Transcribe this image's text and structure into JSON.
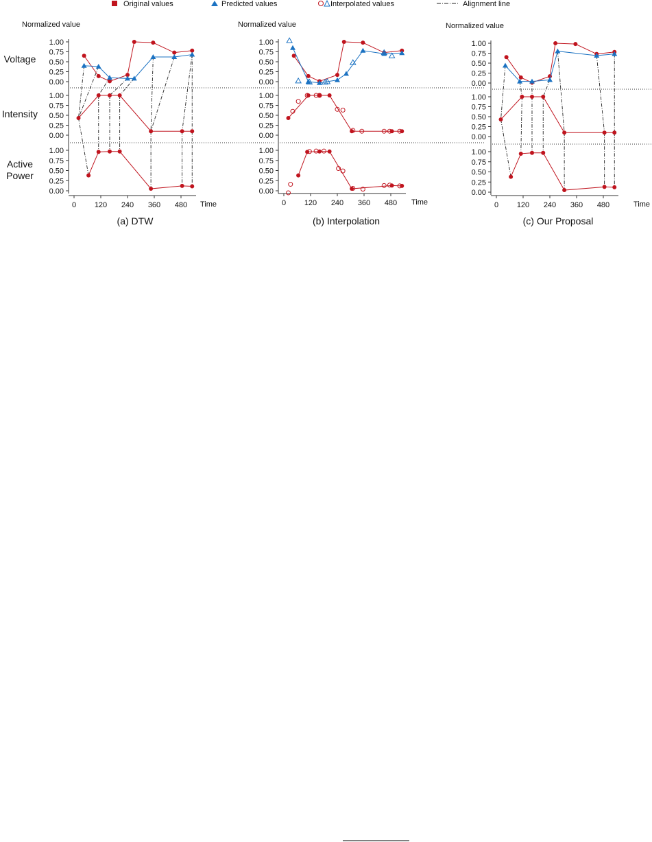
{
  "legend": {
    "original": "Original values",
    "predicted": "Predicted values",
    "interpolated": "Interpolated values",
    "alignment": "Alignment line"
  },
  "y_axis_title": "Normalized value",
  "x_axis_title": "Time",
  "row_labels": [
    "Voltage",
    "Intensity",
    "Active\nPower"
  ],
  "y_ticks": [
    "1.00",
    "0.75",
    "0.50",
    "0.25",
    "0.00"
  ],
  "x_ticks": [
    "0",
    "120",
    "240",
    "360",
    "480"
  ],
  "colors": {
    "original": "#c0141e",
    "predicted": "#1b72c2",
    "alignment": "#222222"
  },
  "chart_data": [
    {
      "type": "line",
      "caption": "(a) DTW",
      "xlim": [
        0,
        540
      ],
      "ylim": [
        0,
        1
      ],
      "series": [
        {
          "name": "Original values",
          "row": "Voltage",
          "x": [
            45,
            110,
            160,
            240,
            270,
            355,
            450,
            530
          ],
          "y": [
            0.65,
            0.14,
            0.01,
            0.17,
            1.0,
            0.98,
            0.73,
            0.78
          ]
        },
        {
          "name": "Predicted values",
          "row": "Voltage",
          "x": [
            45,
            110,
            160,
            240,
            270,
            355,
            450,
            530
          ],
          "y": [
            0.4,
            0.38,
            0.1,
            0.08,
            0.08,
            0.62,
            0.62,
            0.68
          ]
        },
        {
          "name": "Original values",
          "row": "Intensity",
          "x": [
            20,
            110,
            160,
            205,
            345,
            485,
            530
          ],
          "y": [
            0.43,
            1.0,
            1.0,
            1.0,
            0.1,
            0.1,
            0.1
          ]
        },
        {
          "name": "Original values",
          "row": "Active Power",
          "x": [
            65,
            110,
            160,
            205,
            345,
            485,
            530
          ],
          "y": [
            0.38,
            0.96,
            0.97,
            0.97,
            0.05,
            0.12,
            0.11
          ]
        }
      ],
      "alignments": [
        {
          "from": [
            "Voltage",
            45,
            0.4
          ],
          "to": [
            "Intensity",
            20,
            0.43
          ]
        },
        {
          "from": [
            "Voltage",
            110,
            0.38
          ],
          "to": [
            "Intensity",
            20,
            0.43
          ]
        },
        {
          "from": [
            "Voltage",
            160,
            0.1
          ],
          "to": [
            "Intensity",
            110,
            1.0
          ]
        },
        {
          "from": [
            "Voltage",
            240,
            0.08
          ],
          "to": [
            "Intensity",
            160,
            1.0
          ]
        },
        {
          "from": [
            "Voltage",
            270,
            0.08
          ],
          "to": [
            "Intensity",
            205,
            1.0
          ]
        },
        {
          "from": [
            "Voltage",
            355,
            0.62
          ],
          "to": [
            "Intensity",
            345,
            0.1
          ]
        },
        {
          "from": [
            "Voltage",
            450,
            0.62
          ],
          "to": [
            "Intensity",
            345,
            0.1
          ]
        },
        {
          "from": [
            "Voltage",
            530,
            0.68
          ],
          "to": [
            "Intensity",
            485,
            0.1
          ]
        },
        {
          "from": [
            "Voltage",
            530,
            0.68
          ],
          "to": [
            "Intensity",
            530,
            0.1
          ]
        },
        {
          "from": [
            "Intensity",
            20,
            0.43
          ],
          "to": [
            "Active Power",
            65,
            0.38
          ]
        },
        {
          "from": [
            "Intensity",
            110,
            1.0
          ],
          "to": [
            "Active Power",
            110,
            0.96
          ]
        },
        {
          "from": [
            "Intensity",
            160,
            1.0
          ],
          "to": [
            "Active Power",
            160,
            0.97
          ]
        },
        {
          "from": [
            "Intensity",
            205,
            1.0
          ],
          "to": [
            "Active Power",
            205,
            0.97
          ]
        },
        {
          "from": [
            "Intensity",
            345,
            0.1
          ],
          "to": [
            "Active Power",
            345,
            0.05
          ]
        },
        {
          "from": [
            "Intensity",
            485,
            0.1
          ],
          "to": [
            "Active Power",
            485,
            0.12
          ]
        },
        {
          "from": [
            "Intensity",
            530,
            0.1
          ],
          "to": [
            "Active Power",
            530,
            0.11
          ]
        }
      ]
    },
    {
      "type": "line",
      "caption": "(b) Interpolation",
      "xlim": [
        0,
        540
      ],
      "ylim": [
        0,
        1
      ],
      "series": [
        {
          "name": "Original values",
          "row": "Voltage",
          "x": [
            45,
            110,
            160,
            240,
            270,
            355,
            450,
            530
          ],
          "y": [
            0.65,
            0.14,
            0.01,
            0.17,
            1.0,
            0.98,
            0.73,
            0.78
          ]
        },
        {
          "name": "Predicted values",
          "row": "Voltage",
          "x": [
            40,
            110,
            160,
            240,
            280,
            355,
            450,
            530
          ],
          "y": [
            0.85,
            0.0,
            -0.03,
            0.04,
            0.2,
            0.78,
            0.7,
            0.72
          ]
        },
        {
          "name": "Interpolated values",
          "row": "Voltage",
          "marker": "open-triangle",
          "x": [
            25,
            65,
            115,
            185,
            195,
            310,
            450,
            485
          ],
          "y": [
            1.03,
            0.02,
            -0.01,
            -0.01,
            0.0,
            0.48,
            0.73,
            0.65
          ]
        },
        {
          "name": "Original values",
          "row": "Intensity",
          "x": [
            20,
            110,
            160,
            205,
            305,
            485,
            530
          ],
          "y": [
            0.43,
            1.0,
            1.0,
            1.0,
            0.1,
            0.1,
            0.1
          ]
        },
        {
          "name": "Interpolated values",
          "row": "Intensity",
          "marker": "open-circle",
          "x": [
            40,
            65,
            105,
            145,
            160,
            240,
            265,
            310,
            350,
            450,
            475,
            520
          ],
          "y": [
            0.6,
            0.85,
            1.0,
            1.0,
            1.0,
            0.65,
            0.63,
            0.12,
            0.1,
            0.1,
            0.1,
            0.1
          ]
        },
        {
          "name": "Original values",
          "row": "Active Power",
          "x": [
            65,
            105,
            160,
            205,
            305,
            485,
            530
          ],
          "y": [
            0.38,
            0.96,
            0.97,
            0.97,
            0.05,
            0.13,
            0.12
          ]
        },
        {
          "name": "Interpolated values",
          "row": "Active Power",
          "marker": "open-circle",
          "x": [
            20,
            30,
            115,
            145,
            180,
            245,
            265,
            310,
            355,
            450,
            475,
            520
          ],
          "y": [
            -0.05,
            0.16,
            0.97,
            0.98,
            0.98,
            0.55,
            0.49,
            0.06,
            0.04,
            0.13,
            0.14,
            0.12
          ]
        }
      ]
    },
    {
      "type": "line",
      "caption": "(c) Our Proposal",
      "xlim": [
        0,
        540
      ],
      "ylim": [
        0,
        1
      ],
      "series": [
        {
          "name": "Original values",
          "row": "Voltage",
          "x": [
            45,
            110,
            160,
            240,
            265,
            355,
            450,
            530
          ],
          "y": [
            0.65,
            0.14,
            0.01,
            0.17,
            1.0,
            0.98,
            0.73,
            0.78
          ]
        },
        {
          "name": "Predicted values",
          "row": "Voltage",
          "x": [
            40,
            105,
            160,
            240,
            275,
            450,
            530
          ],
          "y": [
            0.44,
            0.04,
            0.04,
            0.08,
            0.8,
            0.69,
            0.73
          ]
        },
        {
          "name": "Original values",
          "row": "Intensity",
          "x": [
            20,
            115,
            160,
            210,
            305,
            485,
            530
          ],
          "y": [
            0.43,
            1.0,
            1.0,
            1.0,
            0.1,
            0.1,
            0.1
          ]
        },
        {
          "name": "Original values",
          "row": "Active Power",
          "x": [
            65,
            110,
            160,
            210,
            305,
            485,
            530
          ],
          "y": [
            0.38,
            0.95,
            0.97,
            0.97,
            0.05,
            0.13,
            0.12
          ]
        }
      ],
      "alignments": [
        {
          "from": [
            "Voltage",
            40,
            0.44
          ],
          "to": [
            "Intensity",
            20,
            0.43
          ]
        },
        {
          "from": [
            "Voltage",
            105,
            0.04
          ],
          "to": [
            "Intensity",
            115,
            1.0
          ]
        },
        {
          "from": [
            "Voltage",
            160,
            0.04
          ],
          "to": [
            "Intensity",
            160,
            1.0
          ]
        },
        {
          "from": [
            "Voltage",
            240,
            0.08
          ],
          "to": [
            "Intensity",
            210,
            1.0
          ]
        },
        {
          "from": [
            "Voltage",
            275,
            0.8
          ],
          "to": [
            "Intensity",
            305,
            0.1
          ]
        },
        {
          "from": [
            "Voltage",
            450,
            0.69
          ],
          "to": [
            "Intensity",
            485,
            0.1
          ]
        },
        {
          "from": [
            "Voltage",
            530,
            0.73
          ],
          "to": [
            "Intensity",
            530,
            0.1
          ]
        },
        {
          "from": [
            "Intensity",
            20,
            0.43
          ],
          "to": [
            "Active Power",
            65,
            0.38
          ]
        },
        {
          "from": [
            "Intensity",
            115,
            1.0
          ],
          "to": [
            "Active Power",
            110,
            0.95
          ]
        },
        {
          "from": [
            "Intensity",
            160,
            1.0
          ],
          "to": [
            "Active Power",
            160,
            0.97
          ]
        },
        {
          "from": [
            "Intensity",
            210,
            1.0
          ],
          "to": [
            "Active Power",
            210,
            0.97
          ]
        },
        {
          "from": [
            "Intensity",
            305,
            0.1
          ],
          "to": [
            "Active Power",
            305,
            0.05
          ]
        },
        {
          "from": [
            "Intensity",
            485,
            0.1
          ],
          "to": [
            "Active Power",
            485,
            0.13
          ]
        },
        {
          "from": [
            "Intensity",
            530,
            0.1
          ],
          "to": [
            "Active Power",
            530,
            0.12
          ]
        }
      ]
    }
  ]
}
